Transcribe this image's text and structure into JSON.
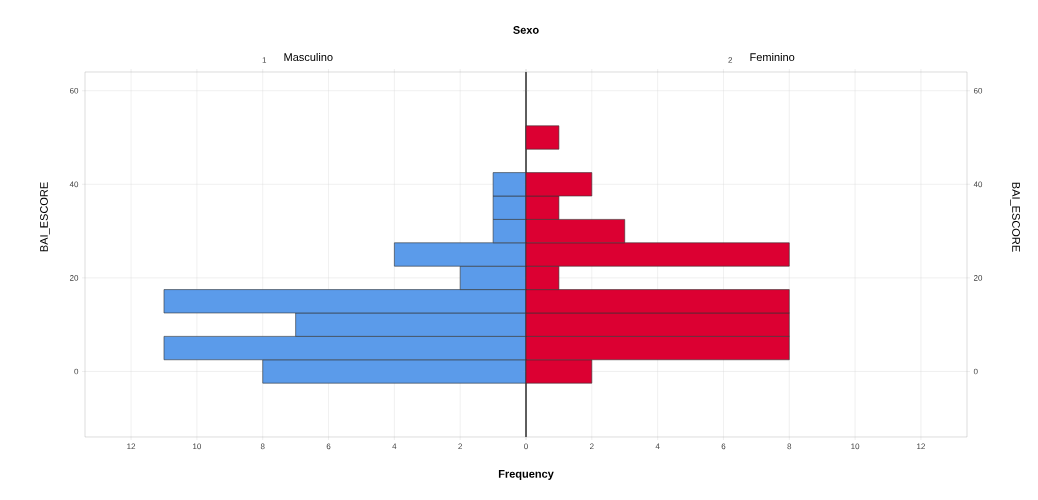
{
  "chart_data": [
    {
      "type": "histogram",
      "orientation": "horizontal",
      "title": "Sexo",
      "subtitle": "Masculino",
      "annotations": [
        "1"
      ],
      "xlabel": "Frequency",
      "ylabel": "BAI_ESCORE",
      "bins": [
        -2.5,
        2.5,
        7.5,
        12.5,
        17.5,
        22.5,
        27.5,
        32.5,
        37.5,
        42.5,
        47.5,
        52.5
      ],
      "values": [
        8,
        11,
        7,
        11,
        2,
        4,
        1,
        1,
        1,
        0,
        0
      ],
      "color": "#5b9bea",
      "xlim": [
        13.4,
        0
      ],
      "xticks": [
        0,
        2,
        4,
        6,
        8,
        10,
        12
      ],
      "ylim": [
        -14,
        64
      ],
      "yticks": [
        0,
        20,
        40,
        60
      ],
      "grid": true
    },
    {
      "type": "histogram",
      "orientation": "horizontal",
      "subtitle": "Feminino",
      "annotations": [
        "2"
      ],
      "ylabel": "BAI_ESCORE",
      "bins": [
        -2.5,
        2.5,
        7.5,
        12.5,
        17.5,
        22.5,
        27.5,
        32.5,
        37.5,
        42.5,
        47.5,
        52.5
      ],
      "values": [
        2,
        8,
        8,
        8,
        1,
        8,
        3,
        1,
        2,
        0,
        1
      ],
      "color": "#dc0032",
      "xlim": [
        0,
        13.4
      ],
      "xticks": [
        {
          "value": 0,
          "label": null
        },
        2,
        4,
        6,
        8,
        10,
        12
      ],
      "ylim": [
        -14,
        64
      ],
      "yticks": [
        0,
        20,
        40,
        60
      ],
      "grid": true
    }
  ]
}
